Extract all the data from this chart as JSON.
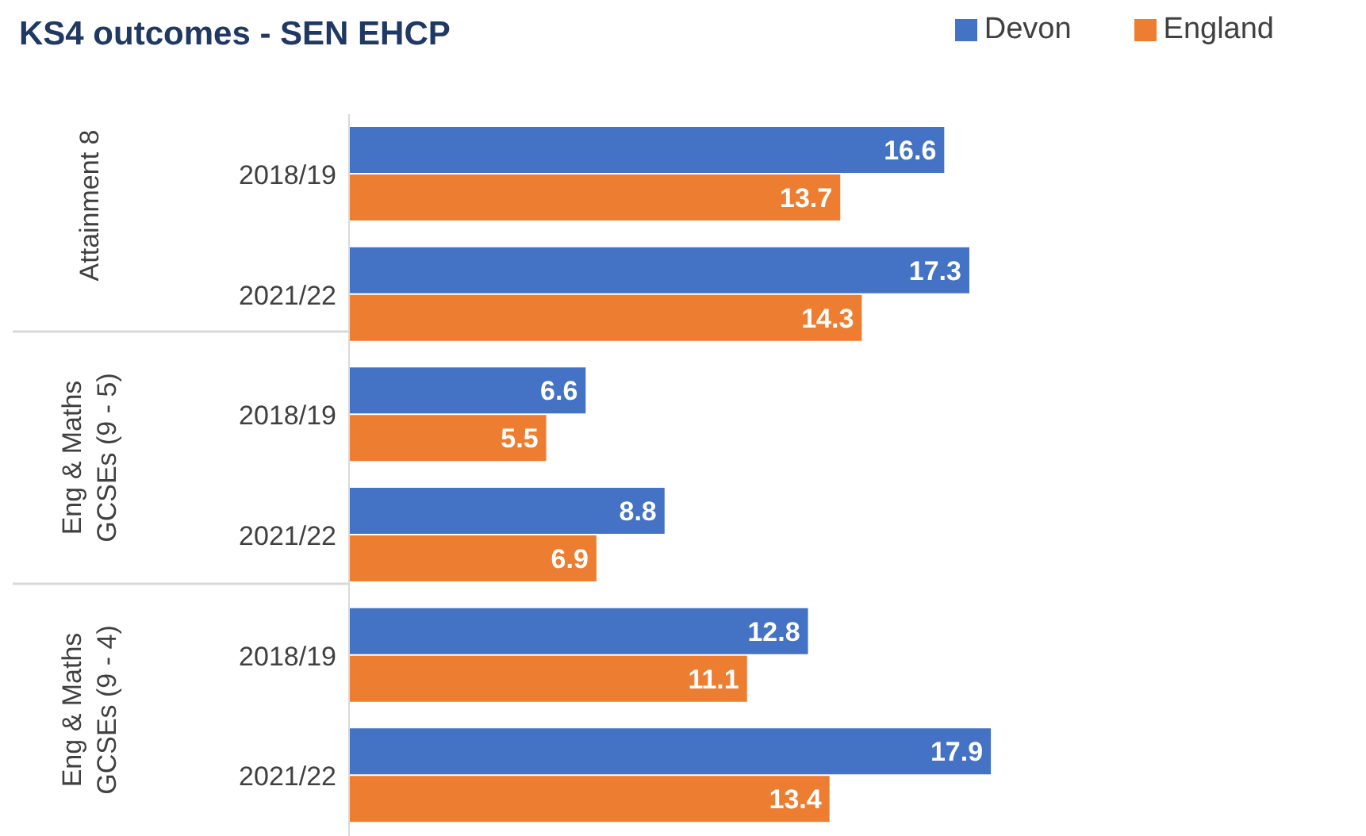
{
  "chart_data": {
    "type": "bar",
    "orientation": "horizontal",
    "title": "KS4 outcomes - SEN EHCP",
    "categories": [
      "2018/19",
      "2021/22",
      "2018/19",
      "2021/22",
      "2018/19",
      "2021/22"
    ],
    "series": [
      {
        "name": "Devon",
        "color": "#4472c4",
        "values": [
          16.6,
          17.3,
          6.6,
          8.8,
          12.8,
          17.9
        ]
      },
      {
        "name": "England",
        "color": "#ed7d31",
        "values": [
          13.7,
          14.3,
          5.5,
          6.9,
          11.1,
          13.4
        ]
      }
    ],
    "annotations": [
      "Attainment 8",
      "Eng & Maths GCSEs (9 - 5)",
      "Eng & Maths GCSEs (9 - 4)"
    ],
    "data_labels": true,
    "legend": "top right"
  }
}
